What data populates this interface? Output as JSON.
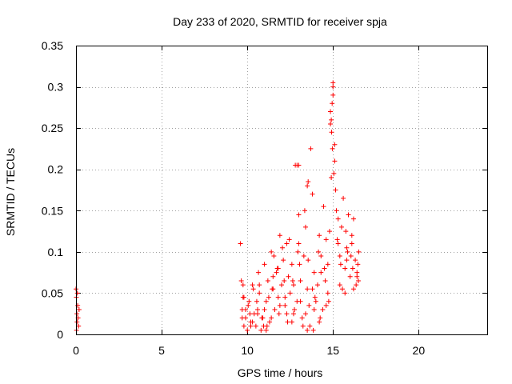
{
  "chart_data": {
    "type": "scatter",
    "title": "Day 233 of 2020, SRMTID for receiver spja",
    "xlabel": "GPS time / hours",
    "ylabel": "SRMTID / TECUs",
    "xlim": [
      0,
      24
    ],
    "ylim": [
      0,
      0.35
    ],
    "x_ticks": [
      0,
      5,
      10,
      15,
      20
    ],
    "x_tick_labels": [
      "0",
      "5",
      "10",
      "15",
      "20"
    ],
    "y_ticks": [
      0,
      0.05,
      0.1,
      0.15,
      0.2,
      0.25,
      0.3,
      0.35
    ],
    "y_tick_labels": [
      "0",
      "0.05",
      "0.1",
      "0.15",
      "0.2",
      "0.25",
      "0.3",
      "0.35"
    ],
    "grid": true,
    "marker": "+",
    "color": "#ff0000",
    "series": [
      {
        "name": "SRMTID",
        "x": [
          0.0,
          0.02,
          0.03,
          0.05,
          0.06,
          0.08,
          0.1,
          0.12,
          0.15,
          0.18,
          9.6,
          9.65,
          9.7,
          9.75,
          9.8,
          9.9,
          10.0,
          10.1,
          10.2,
          10.3,
          10.4,
          10.5,
          10.6,
          10.7,
          10.8,
          10.9,
          11.0,
          11.1,
          11.2,
          11.3,
          11.4,
          11.5,
          11.6,
          11.7,
          11.8,
          11.9,
          12.0,
          12.1,
          12.2,
          12.3,
          12.4,
          12.5,
          12.6,
          12.7,
          12.8,
          12.9,
          13.0,
          13.1,
          13.2,
          13.3,
          13.4,
          13.5,
          13.6,
          13.7,
          13.8,
          13.9,
          14.0,
          14.1,
          14.2,
          14.3,
          14.4,
          14.5,
          14.6,
          14.7,
          14.8,
          14.9,
          15.0,
          15.1,
          15.2,
          15.3,
          15.4,
          15.5,
          15.6,
          15.7,
          15.8,
          15.9,
          16.0,
          16.1,
          16.2,
          16.3,
          16.4,
          16.5,
          9.7,
          10.05,
          10.35,
          10.65,
          10.95,
          11.25,
          11.55,
          11.85,
          12.15,
          12.45,
          12.75,
          13.05,
          13.35,
          13.65,
          13.95,
          14.25,
          14.55,
          14.85,
          15.15,
          15.45,
          15.75,
          16.05,
          16.35,
          9.8,
          10.2,
          10.6,
          11.0,
          11.4,
          11.8,
          12.2,
          12.6,
          13.0,
          13.4,
          13.8,
          14.2,
          14.6,
          15.0,
          15.4,
          15.8,
          16.2,
          16.45,
          12.9,
          13.0,
          13.5,
          13.55,
          14.85,
          14.9,
          14.95,
          15.0,
          15.05,
          15.1,
          14.92,
          14.97,
          9.9,
          10.3,
          10.7,
          11.1,
          11.5,
          11.9,
          12.3,
          12.7,
          13.1,
          13.5,
          13.9,
          14.3,
          14.7,
          15.3,
          15.7,
          16.1,
          16.4,
          9.75,
          10.15,
          10.55,
          10.85,
          11.15,
          11.45,
          11.75,
          12.05,
          12.35,
          12.65,
          12.95,
          13.25,
          13.55,
          13.85,
          14.15,
          14.45,
          14.75,
          15.25,
          15.55,
          15.85,
          16.15,
          16.48
        ],
        "y": [
          0.055,
          0.045,
          0.005,
          0.025,
          0.015,
          0.05,
          0.035,
          0.02,
          0.01,
          0.03,
          0.11,
          0.065,
          0.03,
          0.045,
          0.01,
          0.02,
          0.005,
          0.04,
          0.015,
          0.06,
          0.025,
          0.01,
          0.03,
          0.05,
          0.005,
          0.02,
          0.085,
          0.04,
          0.065,
          0.015,
          0.1,
          0.055,
          0.03,
          0.075,
          0.045,
          0.12,
          0.06,
          0.09,
          0.035,
          0.11,
          0.07,
          0.05,
          0.085,
          0.025,
          0.205,
          0.04,
          0.145,
          0.065,
          0.02,
          0.095,
          0.13,
          0.055,
          0.035,
          0.225,
          0.17,
          0.075,
          0.04,
          0.06,
          0.015,
          0.095,
          0.03,
          0.08,
          0.115,
          0.05,
          0.125,
          0.19,
          0.305,
          0.23,
          0.15,
          0.11,
          0.095,
          0.13,
          0.165,
          0.08,
          0.105,
          0.145,
          0.07,
          0.12,
          0.055,
          0.09,
          0.075,
          0.1,
          0.02,
          0.035,
          0.055,
          0.075,
          0.01,
          0.045,
          0.095,
          0.025,
          0.065,
          0.115,
          0.03,
          0.085,
          0.15,
          0.01,
          0.045,
          0.02,
          0.065,
          0.27,
          0.175,
          0.085,
          0.125,
          0.095,
          0.06,
          0.045,
          0.01,
          0.025,
          0.03,
          0.02,
          0.08,
          0.045,
          0.015,
          0.11,
          0.025,
          0.055,
          0.12,
          0.035,
          0.29,
          0.06,
          0.09,
          0.14,
          0.085,
          0.205,
          0.205,
          0.18,
          0.185,
          0.255,
          0.26,
          0.28,
          0.3,
          0.195,
          0.21,
          0.245,
          0.225,
          0.03,
          0.015,
          0.06,
          0.005,
          0.07,
          0.035,
          0.025,
          0.06,
          0.04,
          0.005,
          0.03,
          0.075,
          0.085,
          0.14,
          0.05,
          0.11,
          0.07,
          0.06,
          0.025,
          0.04,
          0.02,
          0.01,
          0.055,
          0.08,
          0.105,
          0.015,
          0.065,
          0.1,
          0.01,
          0.09,
          0.005,
          0.1,
          0.155,
          0.04,
          0.115,
          0.055,
          0.1,
          0.08,
          0.065
        ]
      }
    ]
  }
}
